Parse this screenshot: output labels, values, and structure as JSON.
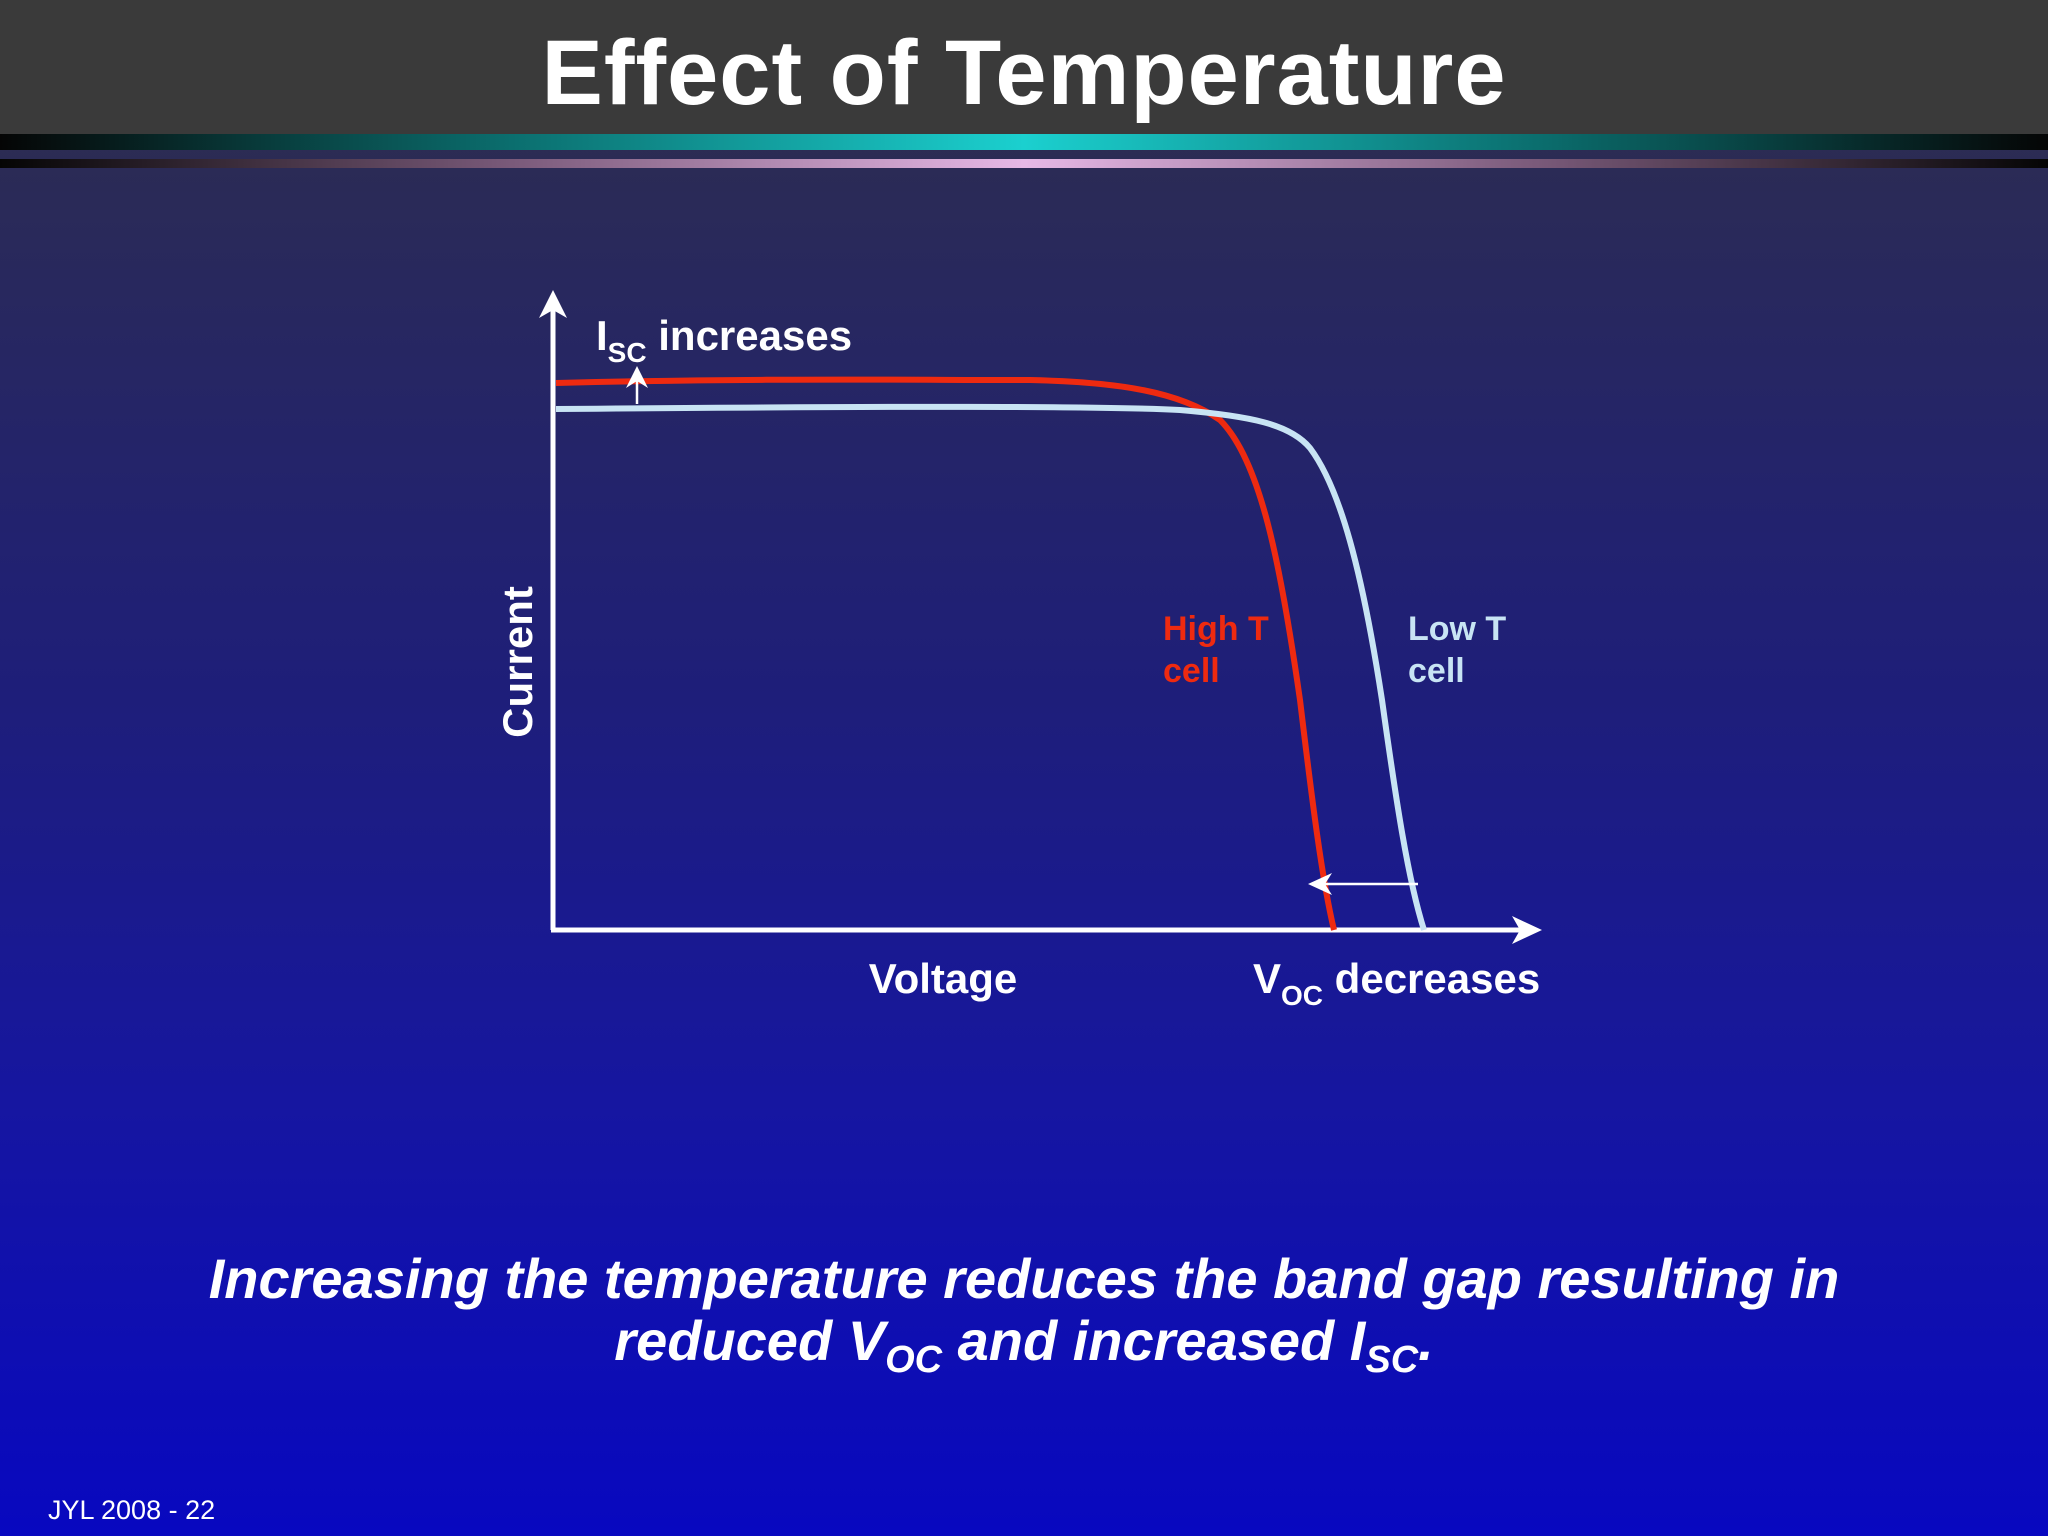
{
  "slide": {
    "title": "Effect of Temperature",
    "footer": "JYL 2008 - 22"
  },
  "diagram": {
    "y_axis_label": "Current",
    "x_axis_label": "Voltage",
    "isc_label": {
      "main": "I",
      "sub": "SC",
      "rest": " increases"
    },
    "voc_label": {
      "main": "V",
      "sub": "OC",
      "rest": " decreases"
    },
    "curves": [
      {
        "name": "high-t-cell",
        "line1": "High T",
        "line2": "cell",
        "color": "#ee2a10"
      },
      {
        "name": "low-t-cell",
        "line1": "Low T",
        "line2": "cell",
        "color": "#c8e4f4"
      }
    ]
  },
  "caption": {
    "line1": "Increasing the temperature reduces the band gap resulting in",
    "line2_a": "reduced V",
    "line2_sub1": "OC",
    "line2_b": " and increased I",
    "line2_sub2": "SC",
    "line2_c": "."
  }
}
